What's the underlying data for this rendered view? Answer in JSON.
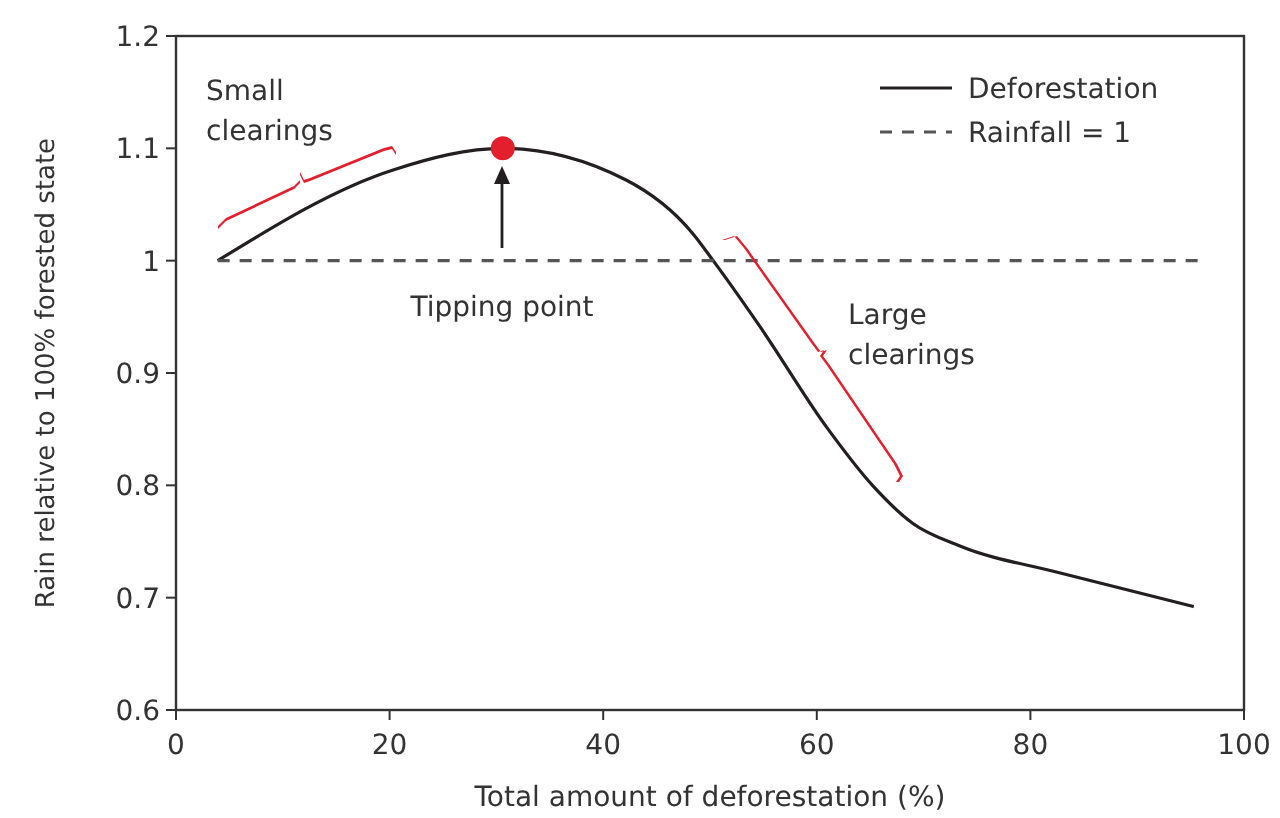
{
  "chart_data": {
    "type": "line",
    "xlabel": "Total amount of deforestation (%)",
    "ylabel": "Rain relative to 100% forested state",
    "xlim": [
      0,
      100
    ],
    "xticks": [
      0,
      20,
      40,
      60,
      80,
      100
    ],
    "ylim": [
      0.6,
      1.2
    ],
    "yticks": [
      0.6,
      0.7,
      0.8,
      0.9,
      1,
      1.1,
      1.2
    ],
    "legend": "top right",
    "grid": false,
    "series": [
      {
        "name": "Deforestation",
        "color": "#231f20",
        "line_style": "solid",
        "x": [
          3.9,
          20.4,
          30.6,
          42.1,
          48.4,
          50.3,
          54.7,
          60.9,
          65.3,
          69.0,
          73.4,
          82.8,
          95.3
        ],
        "values": [
          1.0,
          1.081,
          1.1,
          1.072,
          1.024,
          1.0,
          0.941,
          0.852,
          0.799,
          0.766,
          0.746,
          0.722,
          0.692
        ]
      },
      {
        "name": "Rainfall = 1",
        "color": "#555555",
        "line_style": "dashed",
        "x": [
          3.9,
          95.9
        ],
        "values": [
          1,
          1
        ]
      },
      {
        "type": "scatter",
        "color": "#e31e2d",
        "marker": "circle",
        "x": [
          30.6
        ],
        "values": [
          1.1
        ]
      }
    ],
    "annotations": [
      "Small clearings",
      "Tipping point",
      "Large clearings"
    ]
  }
}
